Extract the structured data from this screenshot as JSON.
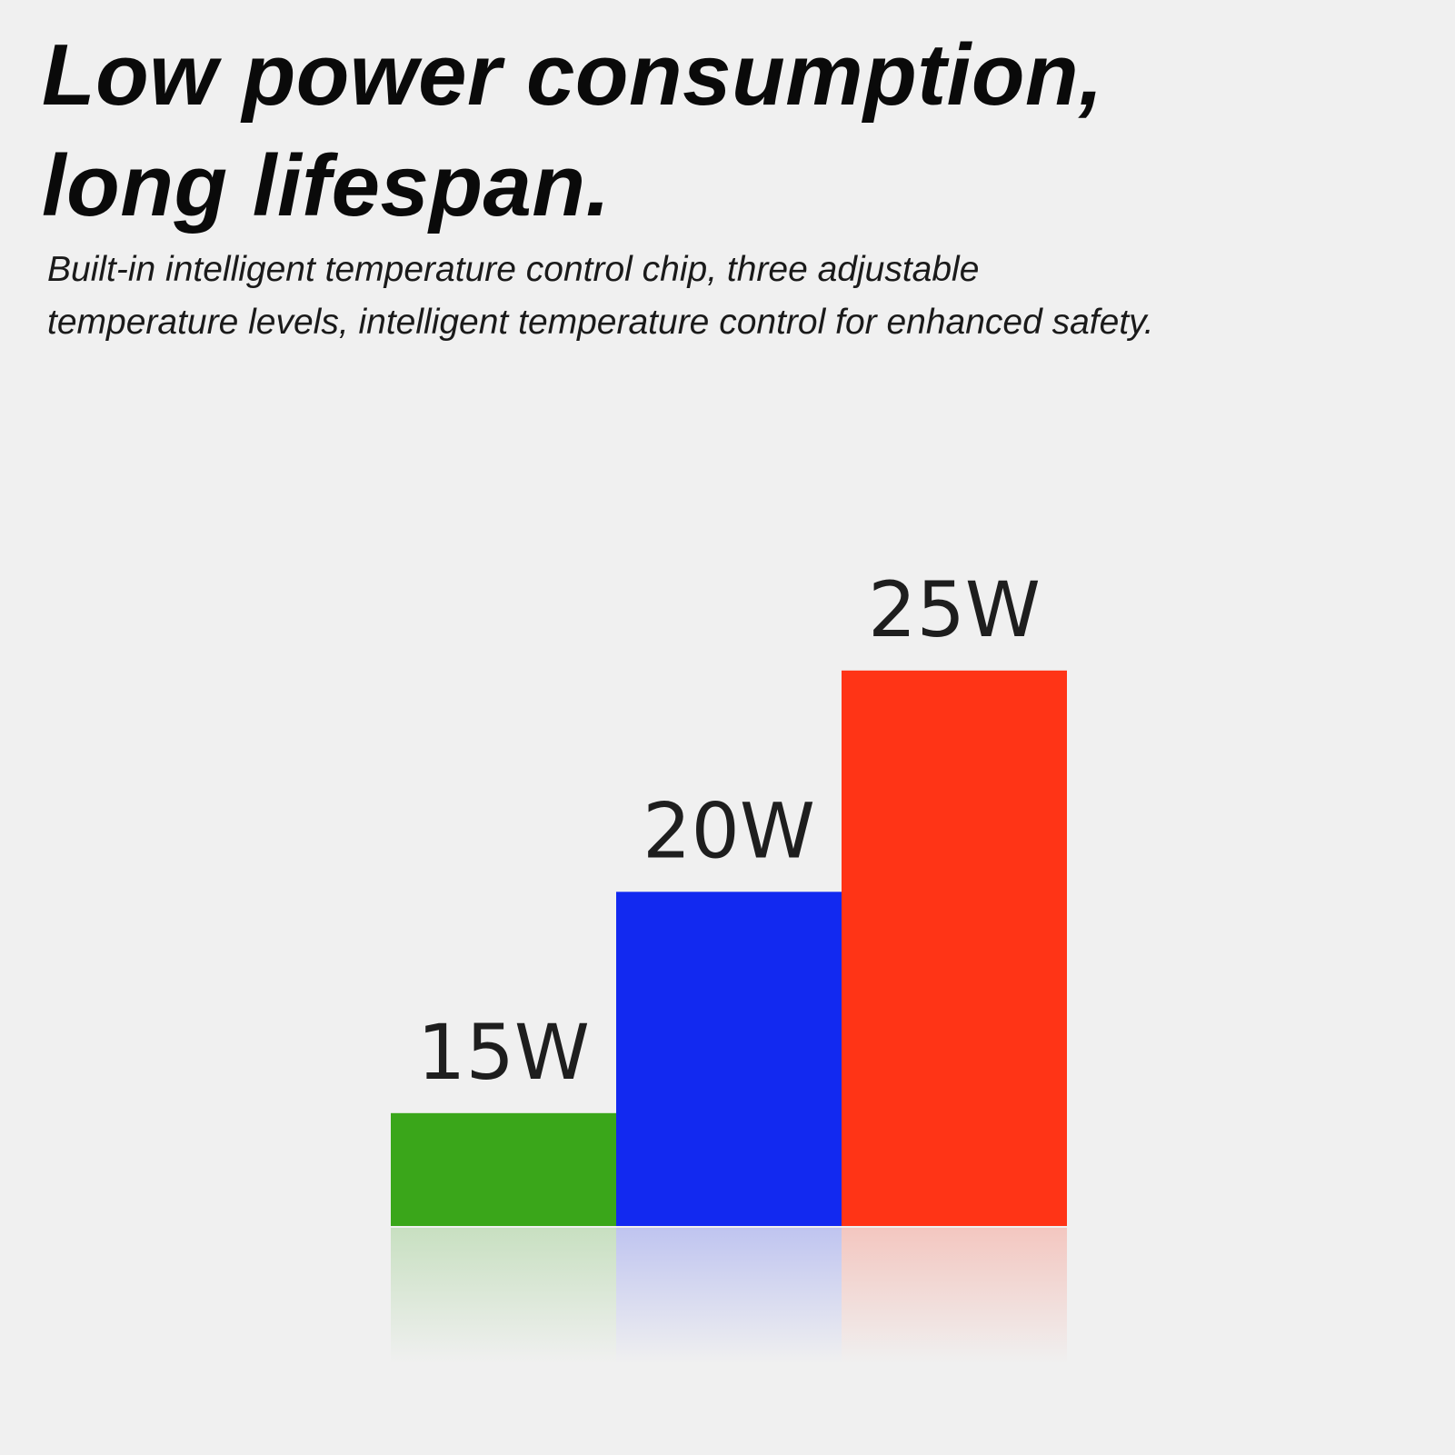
{
  "headline": {
    "line1": "Low power consumption,",
    "line2": "long lifespan."
  },
  "subtitle": {
    "line1": "Built-in intelligent temperature control chip, three adjustable",
    "line2": "temperature levels, intelligent temperature control for enhanced safety."
  },
  "chart_data": {
    "type": "bar",
    "categories": [
      "15W",
      "20W",
      "25W"
    ],
    "values": [
      15,
      20,
      25
    ],
    "data_labels": [
      "15W",
      "20W",
      "25W"
    ],
    "colors": [
      "#3aa61a",
      "#1229f0",
      "#ff3416"
    ],
    "title": "",
    "xlabel": "",
    "ylabel": "",
    "grid": false,
    "legend": "none",
    "reflection": true
  }
}
